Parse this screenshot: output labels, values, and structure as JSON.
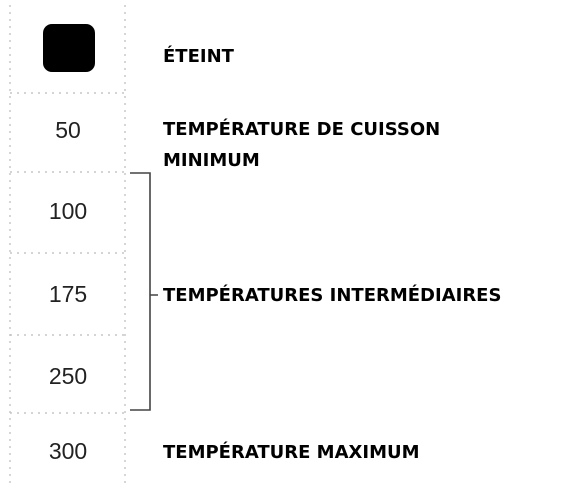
{
  "dial_marks": [
    "50",
    "100",
    "175",
    "250",
    "300"
  ],
  "labels": {
    "off": "ÉTEINT",
    "minimum": [
      "TEMPÉRATURE DE CUISSON",
      "MINIMUM"
    ],
    "intermediate": "TEMPÉRATURES INTERMÉDIAIRES",
    "maximum": "TEMPÉRATURE MAXIMUM"
  }
}
